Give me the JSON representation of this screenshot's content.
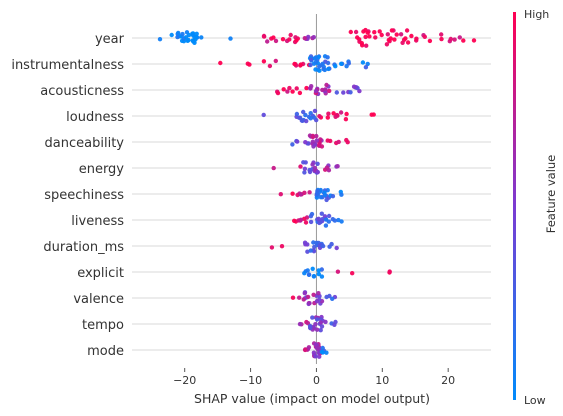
{
  "chart_data": {
    "type": "scatter",
    "subtype": "shap-beeswarm",
    "xlabel": "SHAP value (impact on model output)",
    "xlim": [
      -28,
      26.5
    ],
    "xticks": [
      -20,
      -10,
      0,
      10,
      20
    ],
    "xtick_labels": [
      "−20",
      "−10",
      "0",
      "10",
      "20"
    ],
    "colorbar": {
      "label": "Feature value",
      "high": "High",
      "low": "Low",
      "high_color": "#ff0052",
      "low_color": "#008bfb"
    },
    "features": [
      {
        "name": "year",
        "min": -26,
        "max": 24,
        "density": [
          [
            -26,
            -13,
            0,
            1
          ],
          [
            -22,
            -18,
            0,
            10
          ],
          [
            -8,
            -2,
            0.9,
            5
          ],
          [
            -2,
            0,
            0.6,
            2
          ],
          [
            4,
            14,
            1,
            12
          ],
          [
            14,
            24,
            0.95,
            5
          ]
        ],
        "n": 110
      },
      {
        "name": "instrumentalness",
        "min": -16,
        "max": 8,
        "density": [
          [
            -16,
            -10,
            1,
            1
          ],
          [
            -8,
            -1,
            0.95,
            4
          ],
          [
            -1,
            2,
            0.15,
            12
          ],
          [
            2,
            8,
            0.1,
            4
          ]
        ],
        "n": 100
      },
      {
        "name": "acousticness",
        "min": -6,
        "max": 7,
        "density": [
          [
            -6,
            -1,
            0.95,
            4
          ],
          [
            -1,
            2,
            0.7,
            7
          ],
          [
            2,
            7,
            0.4,
            4
          ]
        ],
        "n": 90
      },
      {
        "name": "loudness",
        "min": -9,
        "max": 9,
        "density": [
          [
            -9,
            -3,
            0.5,
            1
          ],
          [
            -3,
            0,
            0.25,
            7
          ],
          [
            0,
            5,
            0.9,
            5
          ],
          [
            5,
            9,
            0.95,
            1
          ]
        ],
        "n": 90
      },
      {
        "name": "danceability",
        "min": -4,
        "max": 5,
        "density": [
          [
            -4,
            -1,
            0.35,
            3
          ],
          [
            -1,
            1,
            0.7,
            9
          ],
          [
            1,
            5,
            0.9,
            3
          ]
        ],
        "n": 80
      },
      {
        "name": "energy",
        "min": -7,
        "max": 4,
        "density": [
          [
            -7,
            -2,
            0.95,
            1
          ],
          [
            -2,
            1,
            0.5,
            8
          ],
          [
            1,
            4,
            0.7,
            3
          ]
        ],
        "n": 80
      },
      {
        "name": "speechiness",
        "min": -7,
        "max": 4,
        "density": [
          [
            -7,
            -3,
            0.95,
            1
          ],
          [
            -3,
            0,
            0.75,
            3
          ],
          [
            0,
            2,
            0.2,
            9
          ],
          [
            2,
            4,
            0.15,
            2
          ]
        ],
        "n": 80
      },
      {
        "name": "liveness",
        "min": -7,
        "max": 4,
        "density": [
          [
            -7,
            -3,
            0.95,
            1
          ],
          [
            -3,
            -1,
            0.8,
            3
          ],
          [
            -1,
            2,
            0.3,
            9
          ],
          [
            2,
            4,
            0.1,
            2
          ]
        ],
        "n": 80
      },
      {
        "name": "duration_ms",
        "min": -7,
        "max": 4.5,
        "density": [
          [
            -7,
            -4,
            0.95,
            1
          ],
          [
            -2,
            1,
            0.35,
            9
          ],
          [
            1,
            4.5,
            0.4,
            2
          ]
        ],
        "n": 80
      },
      {
        "name": "explicit",
        "min": -2,
        "max": 11,
        "density": [
          [
            -2,
            1,
            0.05,
            8
          ],
          [
            3,
            6,
            0.95,
            1
          ],
          [
            11,
            11.2,
            1,
            1
          ]
        ],
        "n": 60
      },
      {
        "name": "valence",
        "min": -5,
        "max": 4,
        "density": [
          [
            -5,
            -2,
            0.8,
            1
          ],
          [
            -2,
            1,
            0.6,
            9
          ],
          [
            1,
            4,
            0.3,
            2
          ]
        ],
        "n": 80
      },
      {
        "name": "tempo",
        "min": -2.5,
        "max": 3,
        "density": [
          [
            -2.5,
            -1,
            0.7,
            2
          ],
          [
            -1,
            1,
            0.5,
            10
          ],
          [
            1,
            3,
            0.4,
            2
          ]
        ],
        "n": 80
      },
      {
        "name": "mode",
        "min": -2,
        "max": 2.5,
        "density": [
          [
            -2,
            -0.5,
            0.8,
            3
          ],
          [
            -0.5,
            0.6,
            0.6,
            10
          ],
          [
            0.6,
            2.5,
            0.1,
            3
          ]
        ],
        "n": 70
      }
    ]
  }
}
